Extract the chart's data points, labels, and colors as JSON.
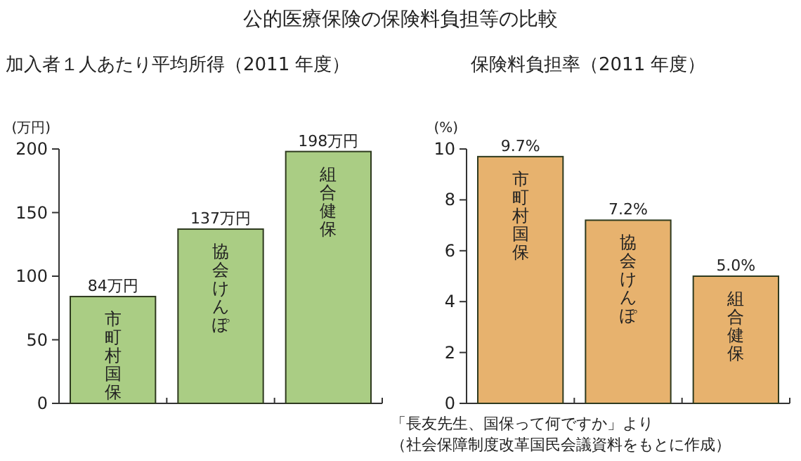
{
  "chart_data": [
    {
      "type": "bar",
      "title": "公的医療保険の保険料負担等の比較",
      "subtitle": "加入者１人あたり平均所得（2011 年度）",
      "ylabel": "(万円)",
      "categories": [
        "市町村国保",
        "協会けんぽ",
        "組合健保"
      ],
      "values": [
        84,
        137,
        198
      ],
      "value_labels": [
        "84万円",
        "137万円",
        "198万円"
      ],
      "color": "#aacd84",
      "ylim": [
        0,
        200
      ],
      "yticks": [
        0,
        50,
        100,
        150,
        200
      ],
      "grid": false
    },
    {
      "type": "bar",
      "title": "保険料負担率（2011 年度）",
      "ylabel": "(%)",
      "categories": [
        "市町村国保",
        "協会けんぽ",
        "組合健保"
      ],
      "values": [
        9.7,
        7.2,
        5.0
      ],
      "value_labels": [
        "9.7%",
        "7.2%",
        "5.0%"
      ],
      "color": "#e7b26e",
      "ylim": [
        0,
        10
      ],
      "yticks": [
        0,
        2,
        4,
        6,
        8,
        10
      ],
      "grid": false,
      "annotations": [
        "「長友先生、国保って何ですか」より",
        "（社会保障制度改革国民会議資料をもとに作成）"
      ]
    }
  ]
}
